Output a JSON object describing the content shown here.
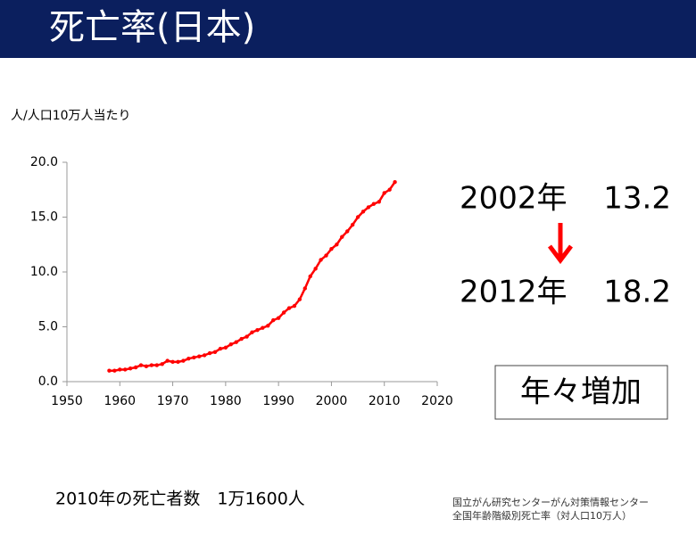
{
  "title": "死亡率(日本)",
  "chart_data": {
    "type": "line",
    "ylabel": "人/人口10万人当たり",
    "x": [
      1958,
      1959,
      1960,
      1961,
      1962,
      1963,
      1964,
      1965,
      1966,
      1967,
      1968,
      1969,
      1970,
      1971,
      1972,
      1973,
      1974,
      1975,
      1976,
      1977,
      1978,
      1979,
      1980,
      1981,
      1982,
      1983,
      1984,
      1985,
      1986,
      1987,
      1988,
      1989,
      1990,
      1991,
      1992,
      1993,
      1994,
      1995,
      1996,
      1997,
      1998,
      1999,
      2000,
      2001,
      2002,
      2003,
      2004,
      2005,
      2006,
      2007,
      2008,
      2009,
      2010,
      2011,
      2012
    ],
    "series": [
      {
        "name": "死亡率",
        "color": "#ff0000",
        "values": [
          1.0,
          1.0,
          1.1,
          1.1,
          1.2,
          1.3,
          1.5,
          1.4,
          1.5,
          1.5,
          1.6,
          1.9,
          1.8,
          1.8,
          1.9,
          2.1,
          2.2,
          2.3,
          2.4,
          2.6,
          2.7,
          3.0,
          3.1,
          3.4,
          3.6,
          3.9,
          4.1,
          4.5,
          4.7,
          4.9,
          5.1,
          5.6,
          5.8,
          6.3,
          6.7,
          6.9,
          7.5,
          8.5,
          9.6,
          10.3,
          11.1,
          11.5,
          12.1,
          12.5,
          13.2,
          13.7,
          14.3,
          15.0,
          15.5,
          15.9,
          16.2,
          16.4,
          17.2,
          17.5,
          18.2
        ]
      }
    ],
    "xlim": [
      1950,
      2020
    ],
    "xticks": [
      1950,
      1960,
      1970,
      1980,
      1990,
      2000,
      2010,
      2020
    ],
    "ylim": [
      0,
      20
    ],
    "yticks": [
      {
        "value": 0,
        "label": "0.0"
      },
      {
        "value": 5,
        "label": "5.0"
      },
      {
        "value": 10,
        "label": "10.0"
      },
      {
        "value": 15,
        "label": "15.0"
      },
      {
        "value": 20,
        "label": "20.0"
      }
    ]
  },
  "highlights": [
    {
      "year": "2002年",
      "value": 13.2
    },
    {
      "year": "2012年",
      "value": 18.2
    }
  ],
  "trend": "年々増加",
  "note": "2010年の死亡者数　1万1600人",
  "source": [
    "国立がん研究センターがん対策情報センター",
    "全国年齢階級別死亡率（対人口10万人）"
  ]
}
